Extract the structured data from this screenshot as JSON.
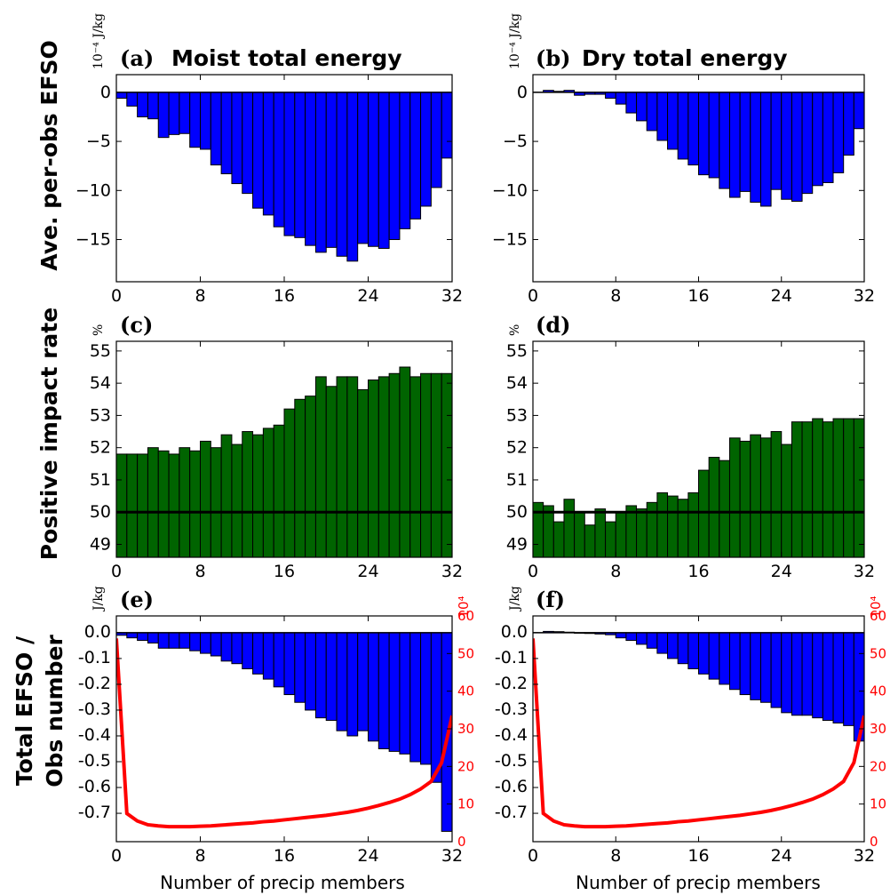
{
  "figure": {
    "row_labels": [
      "Ave. per-obs EFSO",
      "Positive impact rate",
      "Total EFSO /",
      "Obs number"
    ],
    "xlabel": "Number of precip members"
  },
  "chart_data": [
    {
      "id": "a",
      "type": "bar",
      "panel_label": "(a)",
      "title": "Moist total energy",
      "unit_label": "10⁻⁴ J/kg",
      "xlabel": "",
      "ylabel": "Ave. per-obs EFSO",
      "x": [
        0,
        1,
        2,
        3,
        4,
        5,
        6,
        7,
        8,
        9,
        10,
        11,
        12,
        13,
        14,
        15,
        16,
        17,
        18,
        19,
        20,
        21,
        22,
        23,
        24,
        25,
        26,
        27,
        28,
        29,
        30,
        31,
        32
      ],
      "values": [
        0,
        -0.6,
        -1.4,
        -2.5,
        -2.7,
        -4.6,
        -4.3,
        -4.2,
        -5.6,
        -5.8,
        -7.4,
        -8.3,
        -9.3,
        -10.3,
        -11.8,
        -12.5,
        -13.7,
        -14.6,
        -14.8,
        -15.6,
        -16.3,
        -15.8,
        -16.7,
        -17.2,
        -15.4,
        -15.7,
        -15.9,
        -15.0,
        -13.9,
        -12.9,
        -11.6,
        -9.7,
        -6.7
      ],
      "xlim": [
        0,
        32
      ],
      "ylim": [
        -19.3,
        1.8
      ],
      "xticks": [
        "0",
        "8",
        "16",
        "24",
        "32"
      ],
      "yticks": [
        "0",
        "−5",
        "−10",
        "−15"
      ],
      "color": "#0000ff",
      "grid": false
    },
    {
      "id": "b",
      "type": "bar",
      "panel_label": "(b)",
      "title": "Dry total energy",
      "unit_label": "10⁻⁴ J/kg",
      "xlabel": "",
      "ylabel": "",
      "x": [
        0,
        1,
        2,
        3,
        4,
        5,
        6,
        7,
        8,
        9,
        10,
        11,
        12,
        13,
        14,
        15,
        16,
        17,
        18,
        19,
        20,
        21,
        22,
        23,
        24,
        25,
        26,
        27,
        28,
        29,
        30,
        31,
        32
      ],
      "values": [
        0,
        0,
        0.2,
        0.1,
        0.2,
        -0.3,
        -0.2,
        -0.2,
        -0.6,
        -1.2,
        -2.1,
        -2.9,
        -3.9,
        -4.9,
        -5.8,
        -6.8,
        -7.4,
        -8.4,
        -8.7,
        -9.8,
        -10.7,
        -10.1,
        -11.2,
        -11.6,
        -9.9,
        -10.9,
        -11.1,
        -10.3,
        -9.5,
        -9.2,
        -8.2,
        -6.4,
        -3.7
      ],
      "xlim": [
        0,
        32
      ],
      "ylim": [
        -19.3,
        1.8
      ],
      "xticks": [
        "0",
        "8",
        "16",
        "24",
        "32"
      ],
      "yticks": [
        "0",
        "−5",
        "−10",
        "−15"
      ],
      "color": "#0000ff",
      "grid": false
    },
    {
      "id": "c",
      "type": "bar",
      "panel_label": "(c)",
      "title": "",
      "unit_label": "%",
      "xlabel": "",
      "ylabel": "Positive impact rate",
      "x": [
        1,
        2,
        3,
        4,
        5,
        6,
        7,
        8,
        9,
        10,
        11,
        12,
        13,
        14,
        15,
        16,
        17,
        18,
        19,
        20,
        21,
        22,
        23,
        24,
        25,
        26,
        27,
        28,
        29,
        30,
        31,
        32
      ],
      "values": [
        51.8,
        51.8,
        51.8,
        52.0,
        51.9,
        51.8,
        52.0,
        51.9,
        52.2,
        52.0,
        52.4,
        52.1,
        52.5,
        52.4,
        52.6,
        52.7,
        53.2,
        53.5,
        53.6,
        54.2,
        53.9,
        54.2,
        54.2,
        53.8,
        54.1,
        54.2,
        54.3,
        54.5,
        54.2,
        54.3,
        54.3,
        54.3
      ],
      "reference_line": 50,
      "xlim": [
        0,
        32
      ],
      "ylim": [
        48.6,
        55.3
      ],
      "xticks": [
        "0",
        "8",
        "16",
        "24",
        "32"
      ],
      "yticks": [
        "55",
        "54",
        "53",
        "52",
        "51",
        "50",
        "49"
      ],
      "color": "#006400",
      "grid": false
    },
    {
      "id": "d",
      "type": "bar",
      "panel_label": "(d)",
      "title": "",
      "unit_label": "%",
      "xlabel": "",
      "ylabel": "",
      "x": [
        1,
        2,
        3,
        4,
        5,
        6,
        7,
        8,
        9,
        10,
        11,
        12,
        13,
        14,
        15,
        16,
        17,
        18,
        19,
        20,
        21,
        22,
        23,
        24,
        25,
        26,
        27,
        28,
        29,
        30,
        31,
        32
      ],
      "values": [
        50.3,
        50.2,
        49.7,
        50.4,
        50.0,
        49.6,
        50.1,
        49.7,
        50.0,
        50.2,
        50.1,
        50.3,
        50.6,
        50.5,
        50.4,
        50.6,
        51.3,
        51.7,
        51.6,
        52.3,
        52.2,
        52.4,
        52.3,
        52.5,
        52.1,
        52.8,
        52.8,
        52.9,
        52.8,
        52.9,
        52.9,
        52.9
      ],
      "reference_line": 50,
      "xlim": [
        0,
        32
      ],
      "ylim": [
        48.6,
        55.3
      ],
      "xticks": [
        "0",
        "8",
        "16",
        "24",
        "32"
      ],
      "yticks": [
        "55",
        "54",
        "53",
        "52",
        "51",
        "50",
        "49"
      ],
      "color": "#006400",
      "grid": false
    },
    {
      "id": "e",
      "type": "bar",
      "panel_label": "(e)",
      "title": "",
      "unit_label": "J/kg",
      "right_unit_label": "10⁴",
      "xlabel": "Number of precip members",
      "ylabel": "Total EFSO / Obs number",
      "x": [
        0,
        1,
        2,
        3,
        4,
        5,
        6,
        7,
        8,
        9,
        10,
        11,
        12,
        13,
        14,
        15,
        16,
        17,
        18,
        19,
        20,
        21,
        22,
        23,
        24,
        25,
        26,
        27,
        28,
        29,
        30,
        31,
        32
      ],
      "values": [
        0,
        -0.01,
        -0.02,
        -0.03,
        -0.04,
        -0.06,
        -0.06,
        -0.06,
        -0.07,
        -0.08,
        -0.09,
        -0.11,
        -0.12,
        -0.14,
        -0.16,
        -0.18,
        -0.21,
        -0.24,
        -0.27,
        -0.3,
        -0.33,
        -0.34,
        -0.38,
        -0.4,
        -0.38,
        -0.42,
        -0.45,
        -0.46,
        -0.47,
        -0.5,
        -0.51,
        -0.58,
        -0.77
      ],
      "xlim": [
        0,
        32
      ],
      "ylim": [
        -0.81,
        0.065
      ],
      "xticks": [
        "0",
        "8",
        "16",
        "24",
        "32"
      ],
      "yticks": [
        "0.0",
        "-0.1",
        "-0.2",
        "-0.3",
        "-0.4",
        "-0.5",
        "-0.6",
        "-0.7"
      ],
      "color": "#0000ff",
      "secondary_series": {
        "color": "#ff0000",
        "x": [
          0,
          1,
          2,
          3,
          4,
          5,
          6,
          7,
          8,
          9,
          10,
          11,
          12,
          13,
          14,
          15,
          16,
          17,
          18,
          19,
          20,
          21,
          22,
          23,
          24,
          25,
          26,
          27,
          28,
          29,
          30,
          31,
          32
        ],
        "values": [
          54,
          7.5,
          5.5,
          4.5,
          4.2,
          4.0,
          4.0,
          4.0,
          4.1,
          4.2,
          4.4,
          4.6,
          4.8,
          5.0,
          5.3,
          5.5,
          5.8,
          6.1,
          6.4,
          6.7,
          7.0,
          7.4,
          7.8,
          8.3,
          8.9,
          9.6,
          10.4,
          11.3,
          12.5,
          14,
          16,
          21,
          33.5
        ],
        "ylim": [
          0,
          60
        ],
        "yticks": [
          "0",
          "10",
          "20",
          "30",
          "40",
          "50",
          "60"
        ]
      },
      "grid": false
    },
    {
      "id": "f",
      "type": "bar",
      "panel_label": "(f)",
      "title": "",
      "unit_label": "J/kg",
      "right_unit_label": "10⁴",
      "xlabel": "Number of precip members",
      "ylabel": "",
      "x": [
        0,
        1,
        2,
        3,
        4,
        5,
        6,
        7,
        8,
        9,
        10,
        11,
        12,
        13,
        14,
        15,
        16,
        17,
        18,
        19,
        20,
        21,
        22,
        23,
        24,
        25,
        26,
        27,
        28,
        29,
        30,
        31,
        32
      ],
      "values": [
        0,
        0,
        0.005,
        0.004,
        0.002,
        -0.002,
        -0.003,
        -0.005,
        -0.008,
        -0.02,
        -0.03,
        -0.045,
        -0.06,
        -0.08,
        -0.1,
        -0.12,
        -0.14,
        -0.16,
        -0.18,
        -0.2,
        -0.22,
        -0.24,
        -0.26,
        -0.27,
        -0.29,
        -0.31,
        -0.32,
        -0.32,
        -0.33,
        -0.34,
        -0.35,
        -0.36,
        -0.42
      ],
      "xlim": [
        0,
        32
      ],
      "ylim": [
        -0.81,
        0.065
      ],
      "xticks": [
        "0",
        "8",
        "16",
        "24",
        "32"
      ],
      "yticks": [
        "0.0",
        "-0.1",
        "-0.2",
        "-0.3",
        "-0.4",
        "-0.5",
        "-0.6",
        "-0.7"
      ],
      "color": "#0000ff",
      "secondary_series": {
        "color": "#ff0000",
        "x": [
          0,
          1,
          2,
          3,
          4,
          5,
          6,
          7,
          8,
          9,
          10,
          11,
          12,
          13,
          14,
          15,
          16,
          17,
          18,
          19,
          20,
          21,
          22,
          23,
          24,
          25,
          26,
          27,
          28,
          29,
          30,
          31,
          32
        ],
        "values": [
          54,
          7.5,
          5.5,
          4.5,
          4.2,
          4.0,
          4.0,
          4.0,
          4.1,
          4.2,
          4.4,
          4.6,
          4.8,
          5.0,
          5.3,
          5.5,
          5.8,
          6.1,
          6.4,
          6.7,
          7.0,
          7.4,
          7.8,
          8.3,
          8.9,
          9.6,
          10.4,
          11.3,
          12.5,
          14,
          16,
          21,
          33.5
        ],
        "ylim": [
          0,
          60
        ],
        "yticks": [
          "0",
          "10",
          "20",
          "30",
          "40",
          "50",
          "60"
        ]
      },
      "grid": false
    }
  ]
}
